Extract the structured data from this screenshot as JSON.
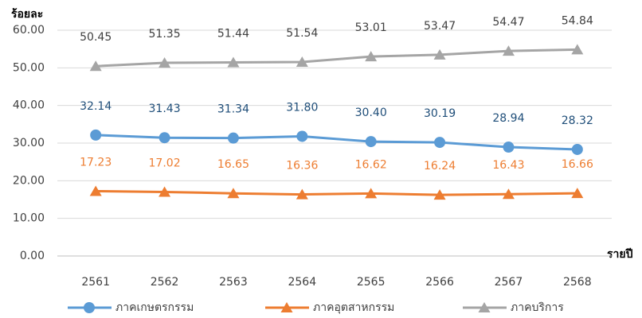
{
  "chart_data": {
    "type": "line",
    "y_label": "ร้อยละ",
    "x_label": "รายปี",
    "categories": [
      "2561",
      "2562",
      "2563",
      "2564",
      "2565",
      "2566",
      "2567",
      "2568"
    ],
    "series": [
      {
        "name": "ภาคเกษตรกรรม",
        "color": "#5b9bd5",
        "marker": "circle",
        "value_label_color": "#1f4e79",
        "values": [
          32.14,
          31.43,
          31.34,
          31.8,
          30.4,
          30.19,
          28.94,
          28.32
        ],
        "value_labels": [
          "32.14",
          "31.43",
          "31.34",
          "31.80",
          "30.40",
          "30.19",
          "28.94",
          "28.32"
        ]
      },
      {
        "name": "ภาคอุตสาหกรรม",
        "color": "#ed7d31",
        "marker": "triangle",
        "value_label_color": "#ed7d31",
        "values": [
          17.23,
          17.02,
          16.65,
          16.36,
          16.62,
          16.24,
          16.43,
          16.66
        ],
        "value_labels": [
          "17.23",
          "17.02",
          "16.65",
          "16.36",
          "16.62",
          "16.24",
          "16.43",
          "16.66"
        ]
      },
      {
        "name": "ภาคบริการ",
        "color": "#a5a5a5",
        "marker": "triangle",
        "value_label_color": "#404040",
        "values": [
          50.45,
          51.35,
          51.44,
          51.54,
          53.01,
          53.47,
          54.47,
          54.84
        ],
        "value_labels": [
          "50.45",
          "51.35",
          "51.44",
          "51.54",
          "53.01",
          "53.47",
          "54.47",
          "54.84"
        ]
      }
    ],
    "ylim": [
      0,
      60
    ],
    "yticks": [
      {
        "value": 0,
        "label": "0.00"
      },
      {
        "value": 10,
        "label": "10.00"
      },
      {
        "value": 20,
        "label": "20.00"
      },
      {
        "value": 30,
        "label": "30.00"
      },
      {
        "value": 40,
        "label": "40.00"
      },
      {
        "value": 50,
        "label": "50.00"
      },
      {
        "value": 60,
        "label": "60.00"
      }
    ],
    "grid": true
  }
}
